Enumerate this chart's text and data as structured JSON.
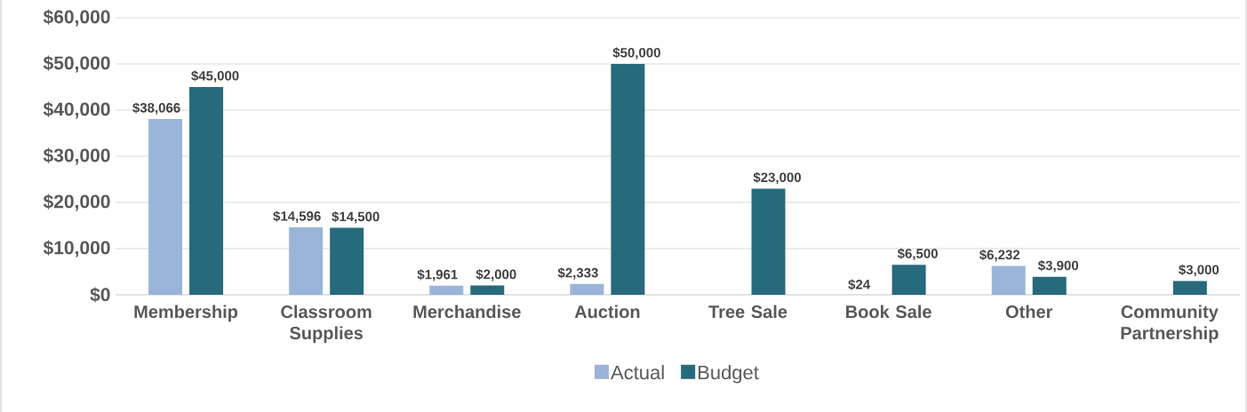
{
  "chart_data": {
    "type": "bar",
    "categories": [
      "Membership",
      "Classroom Supplies",
      "Merchandise",
      "Auction",
      "Tree Sale",
      "Book Sale",
      "Other",
      "Community Partnership"
    ],
    "series": [
      {
        "name": "Actual",
        "color": "#9ab5d9",
        "values": [
          38066,
          14596,
          1961,
          2333,
          null,
          24,
          6232,
          null
        ],
        "value_labels": [
          "$38,066",
          "$14,596",
          "$1,961",
          "$2,333",
          null,
          "$24",
          "$6,232",
          null
        ]
      },
      {
        "name": "Budget",
        "color": "#276a7c",
        "values": [
          45000,
          14500,
          2000,
          50000,
          23000,
          6500,
          3900,
          3000
        ],
        "value_labels": [
          "$45,000",
          "$14,500",
          "$2,000",
          "$50,000",
          "$23,000",
          "$6,500",
          "$3,900",
          "$3,000"
        ]
      }
    ],
    "ylim": [
      0,
      60000
    ],
    "yticks": [
      {
        "value": 0,
        "label": "$0"
      },
      {
        "value": 10000,
        "label": "$10,000"
      },
      {
        "value": 20000,
        "label": "$20,000"
      },
      {
        "value": 30000,
        "label": "$30,000"
      },
      {
        "value": 40000,
        "label": "$40,000"
      },
      {
        "value": 50000,
        "label": "$50,000"
      },
      {
        "value": 60000,
        "label": "$60,000"
      }
    ],
    "grid": "y",
    "legend": "bottom"
  }
}
